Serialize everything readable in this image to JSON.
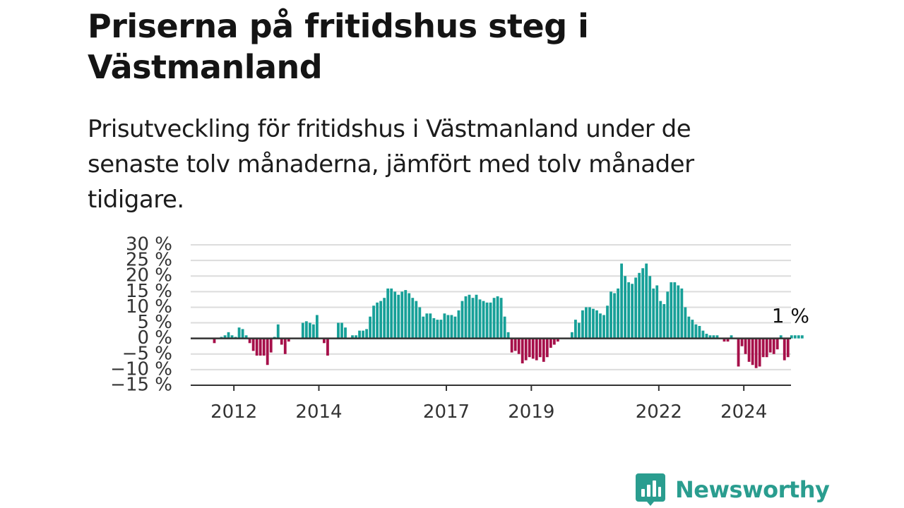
{
  "title": "Priserna på fritidshus steg i Västmanland",
  "subtitle": "Prisutveckling för fritidshus i Västmanland under de senaste tolv månaderna, jämfört med tolv månader tidigare.",
  "logo": {
    "text": "Newsworthy",
    "icon": "bar-chart-speech-bubble-icon",
    "color": "#2a9d8f"
  },
  "chart_data": {
    "type": "bar",
    "title": "",
    "xlabel": "",
    "ylabel": "",
    "ylim": [
      -15,
      30
    ],
    "y_ticks": [
      30,
      25,
      20,
      15,
      10,
      5,
      0,
      -5,
      -10,
      -15
    ],
    "y_tick_labels": [
      "30 %",
      "25 %",
      "20 %",
      "15 %",
      "10 %",
      "5 %",
      "0 %",
      "−5 %",
      "−10 %",
      "−15 %"
    ],
    "x_tick_labels": [
      "2012",
      "2014",
      "2017",
      "2019",
      "2022",
      "2024"
    ],
    "x_tick_months": [
      "2012-01",
      "2014-01",
      "2017-01",
      "2019-01",
      "2022-01",
      "2024-01"
    ],
    "first_month": "2011-01",
    "grid": true,
    "colors": {
      "positive": "#17a098",
      "negative": "#a6104a",
      "grid": "#dcdcdc",
      "axis": "#333333"
    },
    "annotation": {
      "text": "1 %",
      "month": "2025-01"
    },
    "values": [
      0,
      0,
      0,
      0,
      0,
      0,
      -1.5,
      0,
      0.5,
      1,
      2,
      1,
      0.5,
      3.5,
      3,
      1,
      -1.5,
      -4,
      -5.5,
      -5.5,
      -5.5,
      -8.5,
      -4.5,
      0.5,
      4.5,
      -2,
      -5,
      -1,
      0,
      0,
      0,
      5,
      5.5,
      5,
      4.5,
      7.5,
      0,
      -1.5,
      -5.5,
      0,
      0,
      5,
      5,
      3.5,
      0,
      1,
      1,
      2.5,
      2.5,
      3,
      7,
      10.5,
      11.5,
      12,
      13,
      16,
      16,
      15,
      14,
      15,
      15.5,
      14.5,
      13,
      12,
      10,
      7,
      8,
      8,
      6.5,
      6,
      6,
      8,
      7.5,
      7.5,
      7,
      9,
      12,
      13.5,
      14,
      13,
      14,
      12.5,
      12,
      11.5,
      11.5,
      13,
      13.5,
      13,
      7,
      2,
      -4.5,
      -4,
      -5,
      -8,
      -7,
      -6,
      -6.5,
      -7,
      -6,
      -7.5,
      -6,
      -3,
      -2,
      -1,
      0,
      0,
      0,
      2,
      6,
      5,
      9,
      10,
      10,
      9.5,
      9,
      8,
      7.5,
      10.5,
      15,
      14.5,
      16,
      24,
      20,
      18,
      17.5,
      19.5,
      21,
      22.5,
      24,
      20,
      16,
      17,
      12,
      11,
      15,
      18,
      18,
      17,
      16,
      10,
      7,
      6,
      4.5,
      4,
      2.5,
      1.5,
      1,
      1,
      1,
      0,
      -1,
      -1,
      1,
      0,
      -9,
      -2.5,
      -5,
      -7.5,
      -8.5,
      -9.5,
      -9,
      -6,
      -6,
      -4.5,
      -5,
      -3.5,
      1,
      -7,
      -6,
      1,
      1,
      1,
      1
    ]
  }
}
